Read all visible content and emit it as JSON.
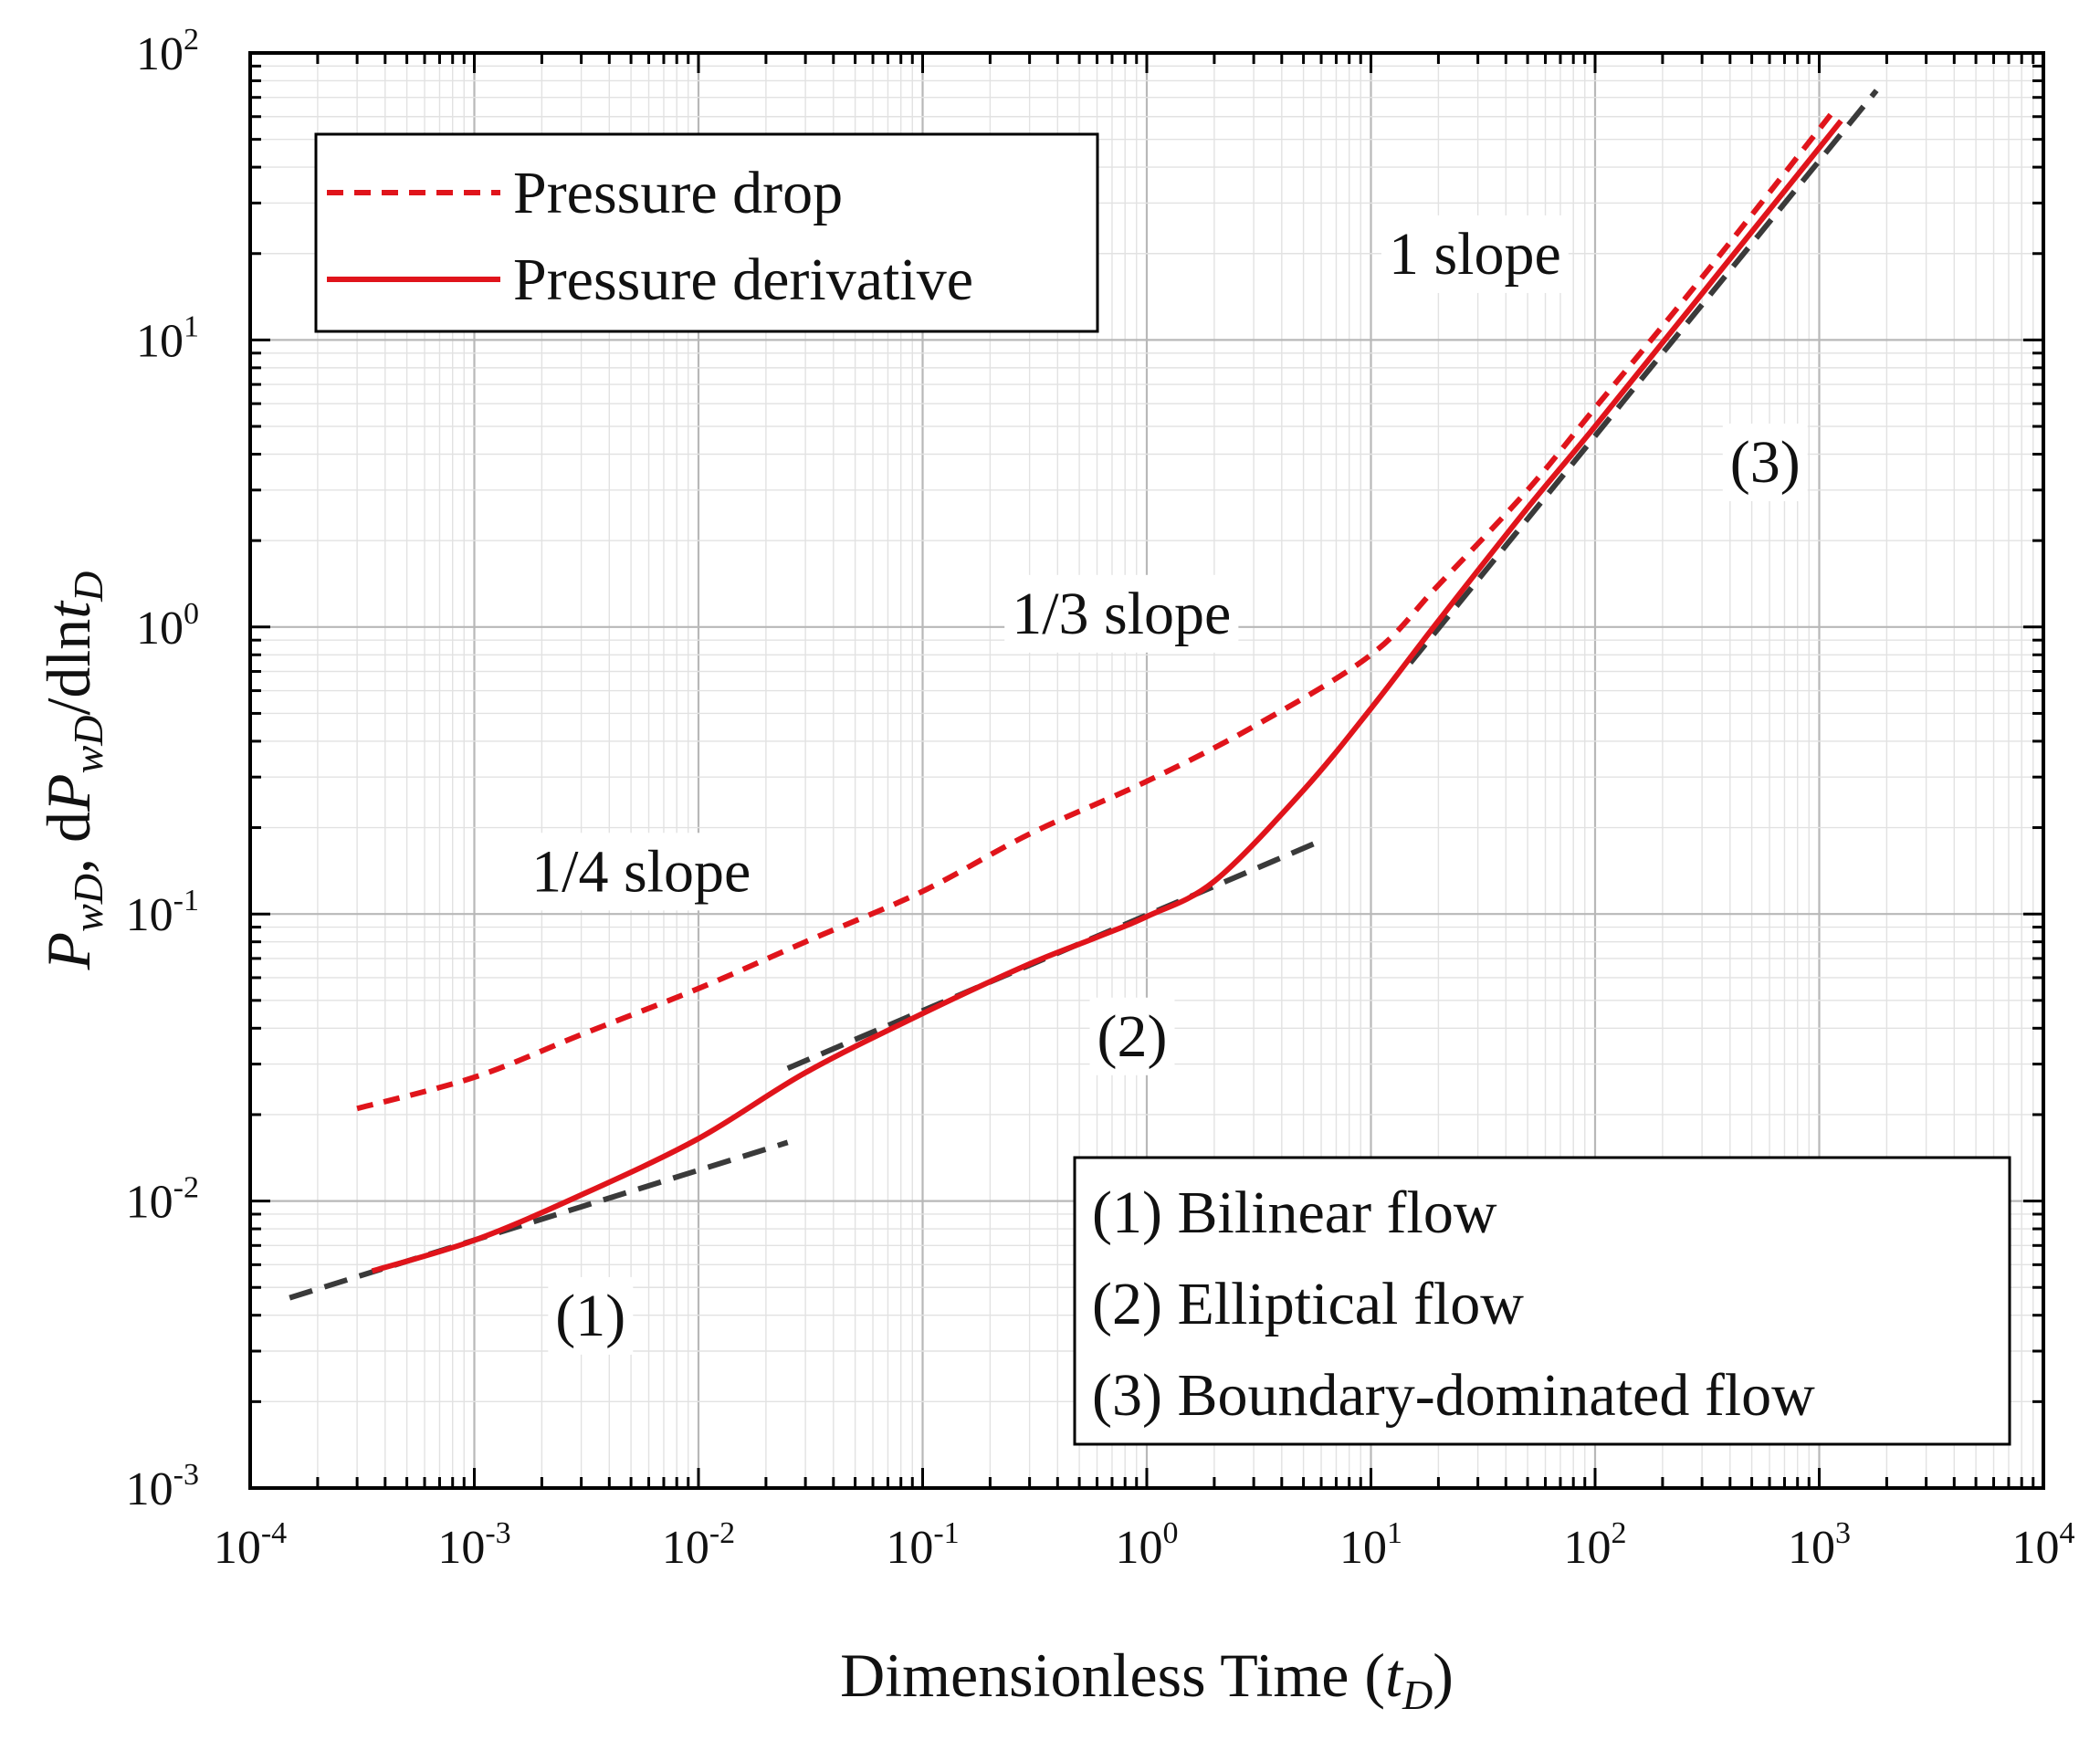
{
  "chart_data": {
    "type": "line",
    "x_scale": "log",
    "y_scale": "log",
    "xlim": [
      0.0001,
      10000
    ],
    "ylim": [
      0.001,
      100
    ],
    "grid": true,
    "xlabel": "Dimensionless Time (tD)",
    "ylabel": "PwD, dPwD/dlntD",
    "x_ticks": [
      {
        "base": "10",
        "exp": "-4",
        "value": 0.0001
      },
      {
        "base": "10",
        "exp": "-3",
        "value": 0.001
      },
      {
        "base": "10",
        "exp": "-2",
        "value": 0.01
      },
      {
        "base": "10",
        "exp": "-1",
        "value": 0.1
      },
      {
        "base": "10",
        "exp": "0",
        "value": 1
      },
      {
        "base": "10",
        "exp": "1",
        "value": 10
      },
      {
        "base": "10",
        "exp": "2",
        "value": 100
      },
      {
        "base": "10",
        "exp": "3",
        "value": 1000
      },
      {
        "base": "10",
        "exp": "4",
        "value": 10000
      }
    ],
    "y_ticks": [
      {
        "base": "10",
        "exp": "-3",
        "value": 0.001
      },
      {
        "base": "10",
        "exp": "-2",
        "value": 0.01
      },
      {
        "base": "10",
        "exp": "-1",
        "value": 0.1
      },
      {
        "base": "10",
        "exp": "0",
        "value": 1
      },
      {
        "base": "10",
        "exp": "1",
        "value": 10
      },
      {
        "base": "10",
        "exp": "2",
        "value": 100
      }
    ],
    "series": [
      {
        "name": "Pressure drop",
        "style": "dashed",
        "color": "#e0141b",
        "x": [
          0.0003,
          0.001,
          0.003,
          0.01,
          0.03,
          0.1,
          0.3,
          1,
          3,
          10,
          20,
          50,
          100,
          300,
          1200
        ],
        "y": [
          0.021,
          0.027,
          0.038,
          0.055,
          0.08,
          0.12,
          0.19,
          0.29,
          0.45,
          0.8,
          1.4,
          3.0,
          5.8,
          16.5,
          65
        ]
      },
      {
        "name": "Pressure derivative",
        "style": "solid",
        "color": "#e0141b",
        "x": [
          0.00035,
          0.001,
          0.003,
          0.01,
          0.03,
          0.1,
          0.3,
          0.6,
          1,
          2,
          5,
          10,
          20,
          50,
          100,
          300,
          1250
        ],
        "y": [
          0.0057,
          0.0073,
          0.0105,
          0.0165,
          0.028,
          0.045,
          0.067,
          0.083,
          0.098,
          0.13,
          0.27,
          0.52,
          1.05,
          2.6,
          5.0,
          14.5,
          58
        ]
      },
      {
        "style": "reference",
        "color": "#3a3a3a",
        "x": [
          0.00015,
          0.025
        ],
        "y": [
          0.0046,
          0.016
        ]
      },
      {
        "style": "reference",
        "color": "#3a3a3a",
        "x": [
          0.025,
          6
        ],
        "y": [
          0.029,
          0.18
        ]
      },
      {
        "style": "reference",
        "color": "#3a3a3a",
        "x": [
          15,
          1800
        ],
        "y": [
          0.75,
          74
        ]
      }
    ],
    "annotations": [
      {
        "id": "quarter",
        "text": "1/4 slope",
        "x": 0.0018,
        "y": 0.12
      },
      {
        "id": "third",
        "text": "1/3 slope",
        "x": 0.25,
        "y": 0.95
      },
      {
        "id": "one",
        "text": "1 slope",
        "x": 12,
        "y": 17
      },
      {
        "id": "label-1",
        "text": "(1)",
        "x": 0.0023,
        "y": 0.0034
      },
      {
        "id": "label-2",
        "text": "(2)",
        "x": 0.6,
        "y": 0.032
      },
      {
        "id": "label-3",
        "text": "(3)",
        "x": 400,
        "y": 3.2
      }
    ],
    "legend": {
      "placement": "top-left",
      "entries": [
        {
          "label": "Pressure drop",
          "style": "dashed",
          "color": "#e0141b"
        },
        {
          "label": "Pressure derivative",
          "style": "solid",
          "color": "#e0141b"
        }
      ]
    },
    "flow_regimes": {
      "placement": "bottom-right",
      "items": [
        "(1) Bilinear flow",
        "(2) Elliptical flow",
        "(3) Boundary-dominated flow"
      ]
    }
  }
}
